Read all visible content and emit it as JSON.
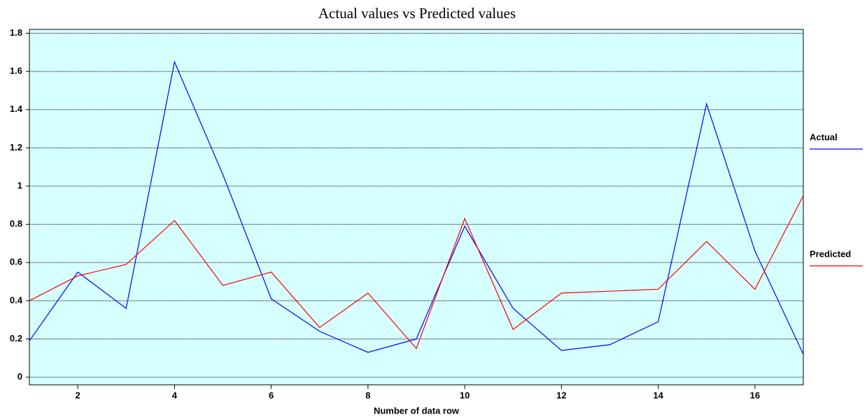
{
  "chart_data": {
    "type": "line",
    "title": "Actual values vs Predicted values",
    "x_label": "Number of data row",
    "x": [
      1,
      2,
      3,
      4,
      5,
      6,
      7,
      8,
      9,
      10,
      11,
      12,
      13,
      14,
      15,
      16,
      17
    ],
    "series": [
      {
        "name": "Actual",
        "color": "#0000ff",
        "values": [
          0.19,
          0.55,
          0.36,
          1.65,
          1.06,
          0.41,
          0.24,
          0.13,
          0.2,
          0.79,
          0.36,
          0.14,
          0.17,
          0.29,
          1.43,
          0.66,
          0.12
        ]
      },
      {
        "name": "Predicted",
        "color": "#ff0000",
        "values": [
          0.4,
          0.53,
          0.59,
          0.82,
          0.48,
          0.55,
          0.26,
          0.44,
          0.15,
          0.83,
          0.25,
          0.44,
          0.45,
          0.46,
          0.71,
          0.46,
          0.95
        ]
      }
    ],
    "xlim": [
      1,
      17
    ],
    "xticks": [
      2,
      4,
      6,
      8,
      10,
      12,
      14,
      16
    ],
    "ylim": [
      -0.04,
      1.82
    ],
    "yticks": [
      0,
      0.2,
      0.4,
      0.6,
      0.8,
      1,
      1.2,
      1.4,
      1.6,
      1.8
    ],
    "grid": true,
    "legend": "right",
    "background": "#d6ffff"
  }
}
